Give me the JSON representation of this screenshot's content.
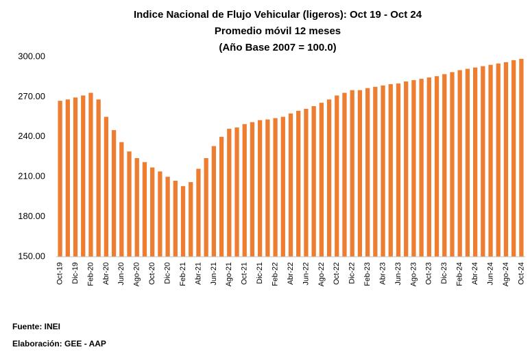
{
  "chart_data": {
    "type": "bar",
    "title": "Indice Nacional  de Flujo Vehicular (ligeros): Oct 19 - Oct 24",
    "subtitle": [
      "Promedio móvil 12 meses",
      "(Año Base 2007 = 100.0)"
    ],
    "categories": [
      "Oct-19",
      null,
      "Dic-19",
      null,
      "Feb-20",
      null,
      "Abr-20",
      null,
      "Jun-20",
      null,
      "Ago-20",
      null,
      "Oct-20",
      null,
      "Dic-20",
      null,
      "Feb-21",
      null,
      "Abr-21",
      null,
      "Jun-21",
      null,
      "Ago-21",
      null,
      "Oct-21",
      null,
      "Dic-21",
      null,
      "Feb-22",
      null,
      "Abr-22",
      null,
      "Jun-22",
      null,
      "Ago-22",
      null,
      "Oct-22",
      null,
      "Dic-22",
      null,
      "Feb-23",
      null,
      "Abr-23",
      null,
      "Jun-23",
      null,
      "Ago-23",
      null,
      "Oct-23",
      null,
      "Dic-23",
      null,
      "Feb-24",
      null,
      "Abr-24",
      null,
      "Jun-24",
      null,
      "Ago-24",
      null,
      "Oct-24"
    ],
    "values": [
      267,
      268,
      269.5,
      271,
      273,
      268,
      255,
      245,
      236,
      229,
      224,
      221,
      217,
      214,
      210,
      207,
      203,
      206,
      216,
      224,
      233,
      240,
      246,
      247,
      249.5,
      251,
      252.5,
      253,
      254,
      255,
      257.5,
      259.5,
      261,
      263,
      265.5,
      268,
      271,
      273,
      275,
      275,
      276.5,
      277.5,
      278.5,
      279.5,
      280,
      281.5,
      282.5,
      283.5,
      284.5,
      285.5,
      287,
      288.5,
      290,
      291,
      292,
      293,
      294,
      295,
      296,
      297.5,
      298.5
    ],
    "color": "#ed7d31",
    "ylim": [
      150,
      300
    ],
    "yticks": [
      {
        "value": 150,
        "label": "150.00"
      },
      {
        "value": 180,
        "label": "180.00"
      },
      {
        "value": 210,
        "label": "210.00"
      },
      {
        "value": 240,
        "label": "240.00"
      },
      {
        "value": 270,
        "label": "270.00"
      },
      {
        "value": 300,
        "label": "300.00"
      }
    ],
    "grid": false,
    "footnotes": [
      "Fuente: INEI",
      "Elaboración: GEE - AAP"
    ]
  }
}
